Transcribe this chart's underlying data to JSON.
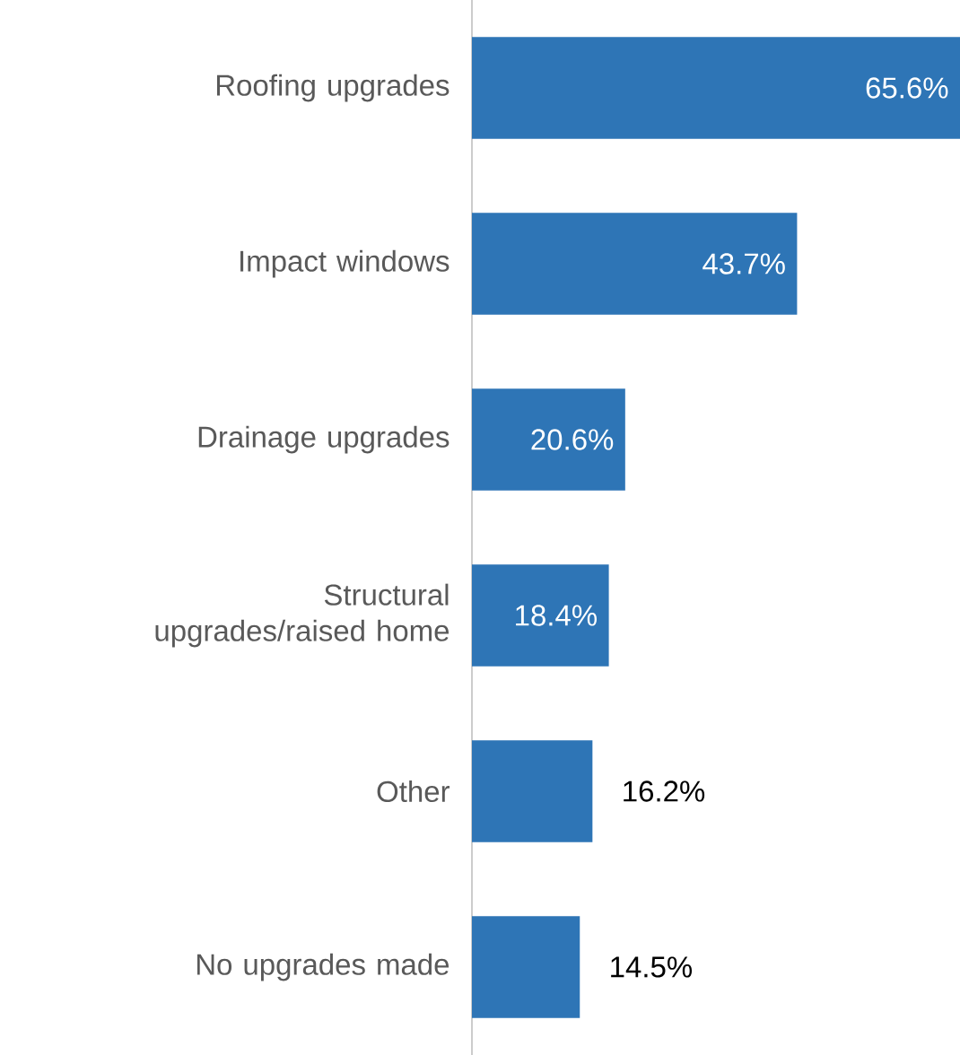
{
  "chart_data": {
    "type": "bar",
    "orientation": "horizontal",
    "categories": [
      "Roofing upgrades",
      "Impact windows",
      "Drainage upgrades",
      "Structural upgrades/raised home",
      "Other",
      "No upgrades made"
    ],
    "values": [
      65.6,
      43.7,
      20.6,
      18.4,
      16.2,
      14.5
    ],
    "value_labels": [
      "65.6%",
      "43.7%",
      "20.6%",
      "18.4%",
      "16.2%",
      "14.5%"
    ],
    "color": "#2e75b6"
  }
}
